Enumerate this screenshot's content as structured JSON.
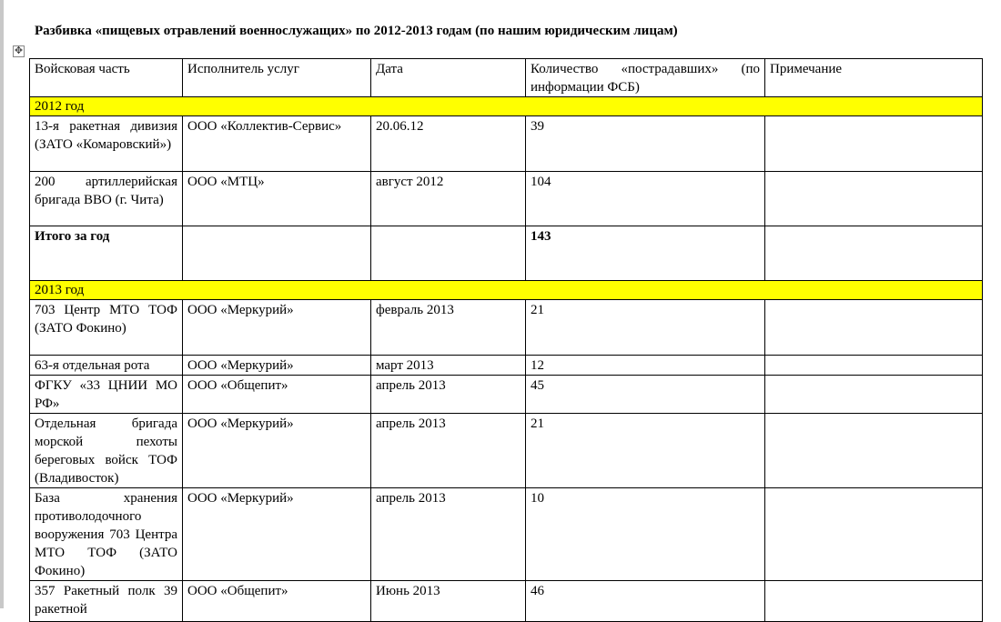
{
  "title": "Разбивка «пищевых отравлений военнослужащих» по 2012-2013 годам (по нашим юридическим лицам)",
  "colors": {
    "year_highlight": "#ffff00"
  },
  "table": {
    "headers": [
      "Войсковая часть",
      "Исполнитель услуг",
      "Дата",
      "Количество «пострадавших» (по информации ФСБ)",
      "Примечание"
    ],
    "sections": [
      {
        "year": "2012 год",
        "rows": [
          [
            "13-я ракетная дивизия (ЗАТО «Комаровский»)",
            "ООО «Коллектив-Сервис»",
            "20.06.12",
            "39",
            ""
          ],
          [
            "200 артиллерийская бригада ВВО (г. Чита)",
            "ООО «МТЦ»",
            "август 2012",
            "104",
            ""
          ]
        ],
        "total": [
          "Итого за год",
          "",
          "",
          "143",
          ""
        ]
      },
      {
        "year": "2013 год",
        "rows": [
          [
            "703 Центр МТО ТОФ (ЗАТО Фокино)",
            "ООО «Меркурий»",
            "февраль 2013",
            "21",
            ""
          ],
          [
            "63-я отдельная рота",
            "ООО «Меркурий»",
            "март 2013",
            "12",
            ""
          ],
          [
            "ФГКУ «33 ЦНИИ МО РФ»",
            "ООО «Общепит»",
            "апрель 2013",
            "45",
            ""
          ],
          [
            "Отдельная бригада морской пехоты береговых войск ТОФ (Владивосток)",
            "ООО «Меркурий»",
            "апрель 2013",
            "21",
            ""
          ],
          [
            "База хранения противолодочного вооружения 703 Центра МТО ТОФ (ЗАТО Фокино)",
            "ООО «Меркурий»",
            "апрель 2013",
            "10",
            ""
          ],
          [
            "357 Ракетный полк 39 ракетной",
            "ООО «Общепит»",
            "Июнь 2013",
            "46",
            ""
          ]
        ]
      }
    ]
  }
}
